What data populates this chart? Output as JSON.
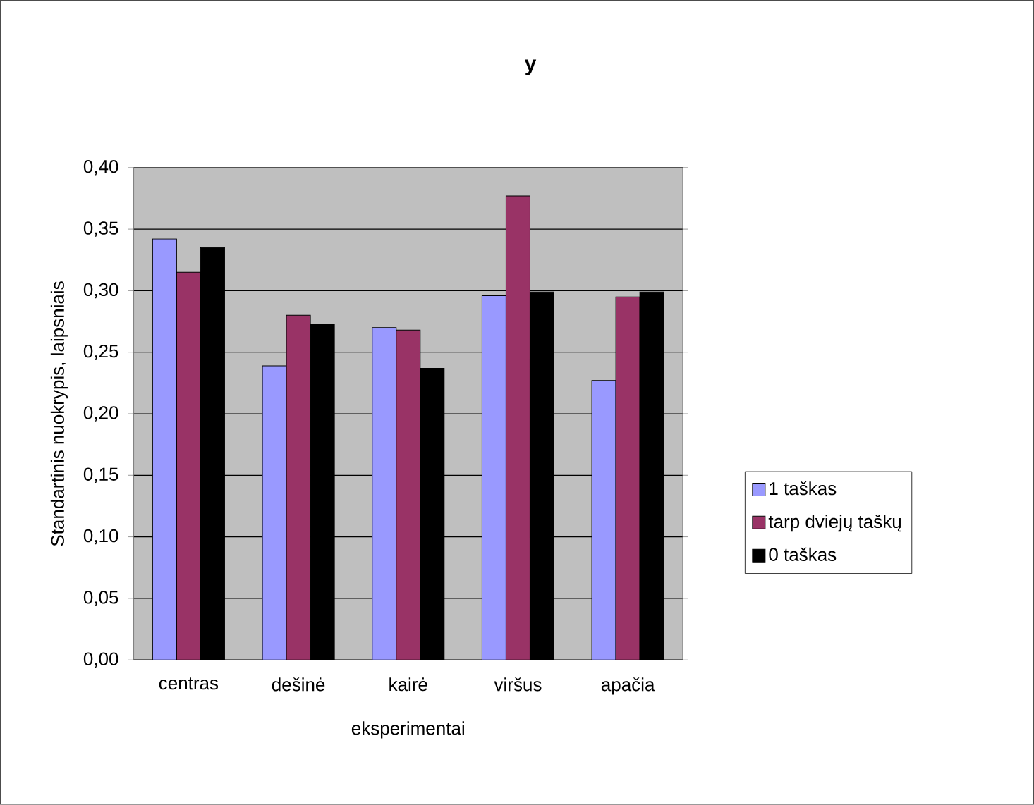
{
  "chart_data": {
    "type": "bar",
    "title": "y",
    "xlabel": "eksperimentai",
    "ylabel": "Standartinis nuokrypis, laipsniais",
    "categories": [
      "centras",
      "dešinė",
      "kairė",
      "viršus",
      "apačia"
    ],
    "series": [
      {
        "name": "1 taškas",
        "color": "#9999ff",
        "values": [
          0.342,
          0.239,
          0.27,
          0.296,
          0.227
        ]
      },
      {
        "name": "tarp dviejų taškų",
        "color": "#993366",
        "values": [
          0.315,
          0.28,
          0.268,
          0.377,
          0.295
        ]
      },
      {
        "name": "0 taškas",
        "color": "#000000",
        "values": [
          0.335,
          0.273,
          0.237,
          0.299,
          0.299
        ]
      }
    ],
    "ylim": [
      0,
      0.4
    ],
    "yticks": [
      {
        "value": 0,
        "label": "0,00"
      },
      {
        "value": 0.05,
        "label": "0,05"
      },
      {
        "value": 0.1,
        "label": "0,10"
      },
      {
        "value": 0.15,
        "label": "0,15"
      },
      {
        "value": 0.2,
        "label": "0,20"
      },
      {
        "value": 0.25,
        "label": "0,25"
      },
      {
        "value": 0.3,
        "label": "0,30"
      },
      {
        "value": 0.35,
        "label": "0,35"
      },
      {
        "value": 0.4,
        "label": "0,40"
      }
    ],
    "grid": "y",
    "legend": "right"
  }
}
